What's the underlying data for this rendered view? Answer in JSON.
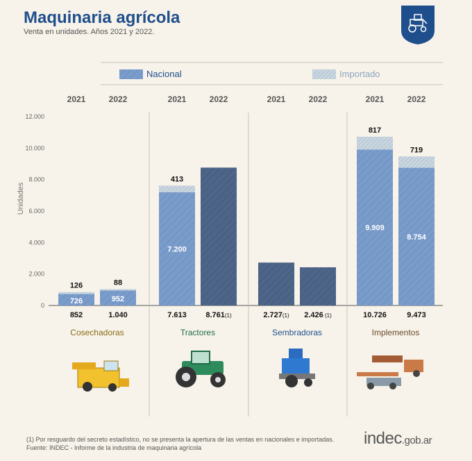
{
  "header": {
    "title": "Maquinaria agrícola",
    "subtitle": "Venta en unidades. Años 2021 y 2022."
  },
  "legend": {
    "nacional": "Nacional",
    "importado": "Importado"
  },
  "colors": {
    "nacional": "#7a9ccb",
    "importado": "#c9d6e0",
    "nacional_only": "#4d6588",
    "title": "#1f4e8c",
    "cosechadoras": "#8a6a12",
    "tractores": "#1e6b4a",
    "sembradoras": "#1e4f8c",
    "implementos": "#6b4a2a"
  },
  "chart_data": {
    "type": "bar",
    "ylabel": "Unidades",
    "ylim": [
      0,
      12000
    ],
    "yticks": [
      "12.000",
      "10.000",
      "8.000",
      "6.000",
      "4.000",
      "2.000",
      "0"
    ],
    "groups": [
      {
        "name": "Cosechadoras",
        "bars": [
          {
            "year": "2021",
            "nacional": 726,
            "importado": 126,
            "total": 852,
            "total_label": "852",
            "nacional_label": "726",
            "importado_label": "126",
            "note": ""
          },
          {
            "year": "2022",
            "nacional": 952,
            "importado": 88,
            "total": 1040,
            "total_label": "1.040",
            "nacional_label": "952",
            "importado_label": "88",
            "note": ""
          }
        ]
      },
      {
        "name": "Tractores",
        "bars": [
          {
            "year": "2021",
            "nacional": 7200,
            "importado": 413,
            "total": 7613,
            "total_label": "7.613",
            "nacional_label": "7.200",
            "importado_label": "413",
            "note": ""
          },
          {
            "year": "2022",
            "nacional": null,
            "importado": null,
            "total": 8761,
            "total_label": "8.761",
            "nacional_label": "",
            "importado_label": "",
            "note": "(1)"
          }
        ]
      },
      {
        "name": "Sembradoras",
        "bars": [
          {
            "year": "2021",
            "nacional": null,
            "importado": null,
            "total": 2727,
            "total_label": "2.727",
            "nacional_label": "",
            "importado_label": "",
            "note": "(1)"
          },
          {
            "year": "2022",
            "nacional": null,
            "importado": null,
            "total": 2426,
            "total_label": "2.426",
            "nacional_label": "",
            "importado_label": "",
            "note": " (1)"
          }
        ]
      },
      {
        "name": "Implementos",
        "bars": [
          {
            "year": "2021",
            "nacional": 9909,
            "importado": 817,
            "total": 10726,
            "total_label": "10.726",
            "nacional_label": "9.909",
            "importado_label": "817",
            "note": ""
          },
          {
            "year": "2022",
            "nacional": 8754,
            "importado": 719,
            "total": 9473,
            "total_label": "9.473",
            "nacional_label": "8.754",
            "importado_label": "719",
            "note": ""
          }
        ]
      }
    ]
  },
  "footer": {
    "footnote": "(1) Por resguardo del secreto estadístico, no se presenta la apertura de las ventas en nacionales e importadas.",
    "source": "Fuente: INDEC - Informe de la industria de maquinaria agrícola",
    "logo_main": "indec",
    "logo_suffix": ".gob.ar"
  }
}
